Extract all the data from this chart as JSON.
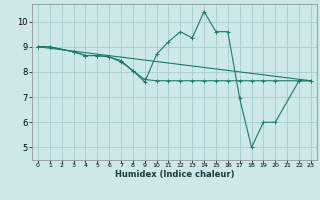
{
  "title": "",
  "xlabel": "Humidex (Indice chaleur)",
  "background_color": "#cce8e8",
  "grid_color": "#aacccc",
  "line_color": "#1a7a6a",
  "xlim": [
    -0.5,
    23.5
  ],
  "ylim": [
    4.5,
    10.7
  ],
  "xticks": [
    0,
    1,
    2,
    3,
    4,
    5,
    6,
    7,
    8,
    9,
    10,
    11,
    12,
    13,
    14,
    15,
    16,
    17,
    18,
    19,
    20,
    21,
    22,
    23
  ],
  "yticks": [
    5,
    6,
    7,
    8,
    9,
    10
  ],
  "series1_x": [
    0,
    1,
    3,
    4,
    5,
    6,
    7,
    8,
    9,
    10,
    11,
    12,
    13,
    14,
    15,
    16,
    17,
    18,
    19,
    20,
    22,
    23
  ],
  "series1_y": [
    9.0,
    9.0,
    8.8,
    8.65,
    8.65,
    8.6,
    8.45,
    8.05,
    7.7,
    7.65,
    7.65,
    7.65,
    7.65,
    7.65,
    7.65,
    7.65,
    7.65,
    7.65,
    7.65,
    7.65,
    7.65,
    7.65
  ],
  "series2_x": [
    0,
    1,
    3,
    4,
    5,
    6,
    7,
    8,
    9,
    10,
    11,
    12,
    13,
    14,
    15,
    16,
    17,
    18,
    19,
    20,
    22,
    23
  ],
  "series2_y": [
    9.0,
    9.0,
    8.8,
    8.65,
    8.65,
    8.6,
    8.4,
    8.05,
    7.6,
    8.7,
    9.2,
    9.6,
    9.35,
    10.4,
    9.6,
    9.6,
    6.95,
    5.0,
    6.0,
    6.0,
    7.65,
    7.65
  ],
  "series3_x": [
    0,
    23
  ],
  "series3_y": [
    9.0,
    7.65
  ]
}
